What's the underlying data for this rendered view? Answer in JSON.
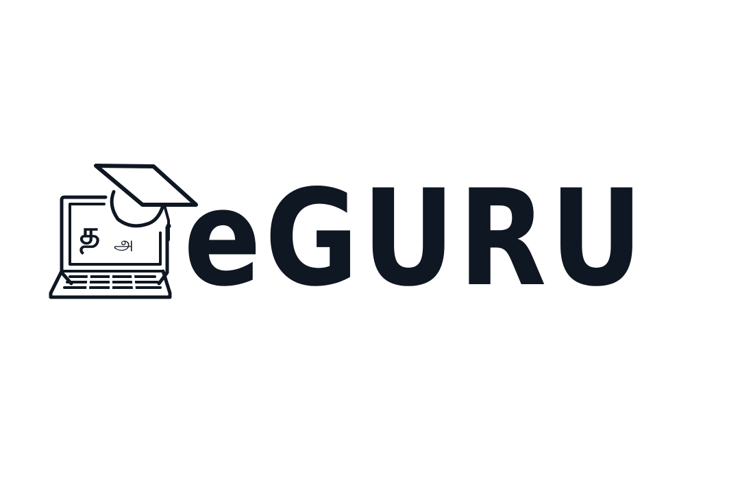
{
  "brand": {
    "name": "eGURU",
    "logo_glyph_large": "த",
    "logo_glyph_small": "அ",
    "ink_color": "#0f1722",
    "background_color": "#ffffff"
  },
  "logo_icons": [
    "laptop-icon",
    "graduation-cap-icon"
  ]
}
